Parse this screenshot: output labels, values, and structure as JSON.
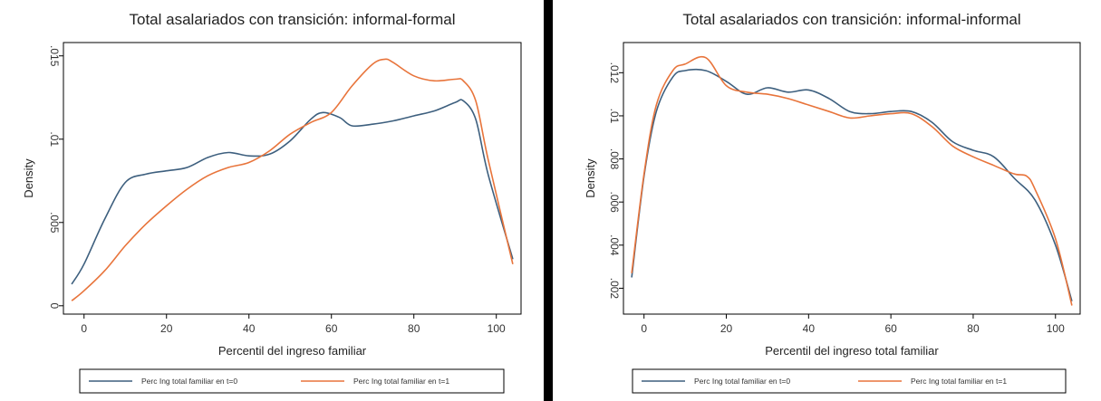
{
  "chart_data": [
    {
      "type": "line",
      "title": "Total asalariados con transición: informal-formal",
      "xlabel": "Percentil del ingreso familiar",
      "ylabel": "Density",
      "xlim": [
        -5,
        106
      ],
      "ylim": [
        -0.0005,
        0.0158
      ],
      "xticks": [
        0,
        20,
        40,
        60,
        80,
        100
      ],
      "xtick_labels": [
        "0",
        "20",
        "40",
        "60",
        "80",
        "100"
      ],
      "yticks": [
        0,
        0.005,
        0.01,
        0.015
      ],
      "ytick_labels": [
        "0",
        ".005",
        ".01",
        ".015"
      ],
      "grid": false,
      "legend_placement": "bottom",
      "series": [
        {
          "name": "Perc Ing total familiar en t=0",
          "color": "#3d5f7e",
          "x": [
            -3,
            0,
            5,
            10,
            15,
            20,
            25,
            30,
            35,
            40,
            45,
            50,
            55,
            58,
            62,
            65,
            70,
            75,
            80,
            85,
            90,
            92,
            95,
            98,
            104
          ],
          "y": [
            0.0013,
            0.0025,
            0.0052,
            0.0074,
            0.0079,
            0.0081,
            0.0083,
            0.0089,
            0.0092,
            0.009,
            0.0091,
            0.0099,
            0.0112,
            0.0116,
            0.0113,
            0.0108,
            0.0109,
            0.0111,
            0.0114,
            0.0117,
            0.0122,
            0.0123,
            0.0112,
            0.0079,
            0.0028
          ]
        },
        {
          "name": "Perc Ing total familiar en t=1",
          "color": "#e8743b",
          "x": [
            -3,
            0,
            5,
            10,
            15,
            20,
            25,
            30,
            35,
            40,
            45,
            50,
            55,
            60,
            65,
            70,
            73,
            75,
            80,
            85,
            90,
            92,
            95,
            98,
            104
          ],
          "y": [
            0.0003,
            0.0009,
            0.0021,
            0.0036,
            0.0049,
            0.006,
            0.007,
            0.0078,
            0.0083,
            0.0086,
            0.0093,
            0.0103,
            0.011,
            0.0116,
            0.0132,
            0.0145,
            0.0148,
            0.0146,
            0.0138,
            0.0135,
            0.0136,
            0.0135,
            0.0123,
            0.0088,
            0.0025
          ]
        }
      ]
    },
    {
      "type": "line",
      "title": "Total asalariados con transición: informal-informal",
      "xlabel": "Percentil del ingreso total familiar",
      "ylabel": "Density",
      "xlim": [
        -5,
        106
      ],
      "ylim": [
        0.0008,
        0.0134
      ],
      "xticks": [
        0,
        20,
        40,
        60,
        80,
        100
      ],
      "xtick_labels": [
        "0",
        "20",
        "40",
        "60",
        "80",
        "100"
      ],
      "yticks": [
        0.002,
        0.004,
        0.006,
        0.008,
        0.01,
        0.012
      ],
      "ytick_labels": [
        ".002",
        ".004",
        ".006",
        ".008",
        ".01",
        ".012"
      ],
      "grid": false,
      "legend_placement": "bottom",
      "series": [
        {
          "name": "Perc Ing total familiar en t=0",
          "color": "#3d5f7e",
          "x": [
            -3,
            0,
            3,
            7,
            10,
            15,
            20,
            25,
            30,
            35,
            40,
            45,
            50,
            55,
            60,
            65,
            70,
            75,
            80,
            85,
            90,
            95,
            100,
            104
          ],
          "y": [
            0.0025,
            0.0072,
            0.0102,
            0.0118,
            0.0121,
            0.0121,
            0.0116,
            0.011,
            0.0113,
            0.0111,
            0.0112,
            0.0108,
            0.0102,
            0.0101,
            0.0102,
            0.0102,
            0.0097,
            0.0088,
            0.0084,
            0.0081,
            0.0071,
            0.0061,
            0.004,
            0.0014
          ]
        },
        {
          "name": "Perc Ing total familiar en t=1",
          "color": "#e8743b",
          "x": [
            -3,
            0,
            3,
            7,
            10,
            15,
            20,
            25,
            30,
            35,
            40,
            45,
            50,
            55,
            60,
            65,
            70,
            75,
            80,
            85,
            90,
            93,
            95,
            100,
            104
          ],
          "y": [
            0.0027,
            0.0073,
            0.0105,
            0.0121,
            0.0124,
            0.0127,
            0.0114,
            0.0111,
            0.011,
            0.0108,
            0.0105,
            0.0102,
            0.0099,
            0.01,
            0.0101,
            0.0101,
            0.0095,
            0.0086,
            0.0081,
            0.0077,
            0.0073,
            0.0072,
            0.0066,
            0.0043,
            0.0012
          ]
        }
      ]
    }
  ]
}
